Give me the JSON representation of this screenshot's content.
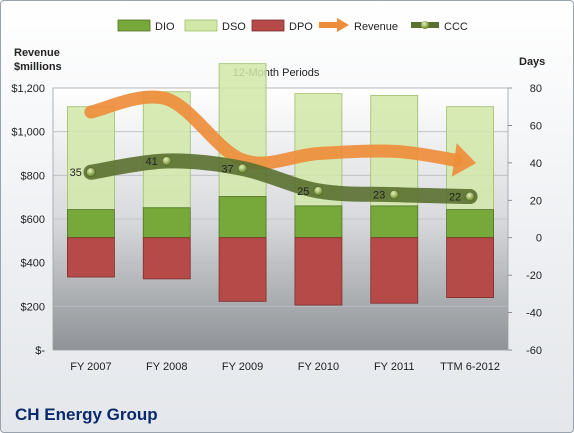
{
  "chart_data": {
    "type": "bar",
    "title": "12-Month Periods",
    "company": "CH Energy Group",
    "categories": [
      "FY 2007",
      "FY 2008",
      "FY 2009",
      "FY 2010",
      "FY 2011",
      "TTM 6-2012"
    ],
    "left_axis": {
      "label_line1": "Revenue",
      "label_line2": "$millions",
      "ylim": [
        0,
        1200
      ],
      "ticks": [
        0,
        200,
        400,
        600,
        800,
        1000,
        1200
      ],
      "tick_labels": [
        "$-",
        "$200",
        "$400",
        "$600",
        "$800",
        "$1,000",
        "$1,200"
      ]
    },
    "right_axis": {
      "label": "Days",
      "ylim": [
        -60,
        80
      ],
      "ticks": [
        -60,
        -40,
        -20,
        0,
        20,
        40,
        60,
        80
      ],
      "tick_labels": [
        "-60",
        "-40",
        "-20",
        "0",
        "20",
        "40",
        "60",
        "80"
      ]
    },
    "series": [
      {
        "name": "DIO",
        "axis": "days",
        "type": "stacked-bar",
        "color": "#76a83a",
        "values": [
          15,
          16,
          22,
          17,
          17,
          15
        ]
      },
      {
        "name": "DSO",
        "axis": "days",
        "type": "stacked-bar",
        "color": "#d2e8a8",
        "values": [
          55,
          62,
          71,
          60,
          59,
          55
        ]
      },
      {
        "name": "DPO",
        "axis": "days",
        "type": "negative-bar",
        "color": "#b54a48",
        "values": [
          -21,
          -22,
          -34,
          -36,
          -35,
          -32
        ]
      },
      {
        "name": "Revenue",
        "axis": "revenue",
        "type": "line-arrow",
        "color": "#ee8d3b",
        "values": [
          1090,
          1150,
          870,
          900,
          910,
          860
        ]
      },
      {
        "name": "CCC",
        "axis": "days",
        "type": "line",
        "color": "#5a7030",
        "values": [
          35,
          41,
          37,
          25,
          23,
          22
        ]
      }
    ],
    "data_labels": [
      "35",
      "41",
      "37",
      "25",
      "23",
      "22"
    ],
    "grid": true,
    "legend_position": "top"
  }
}
